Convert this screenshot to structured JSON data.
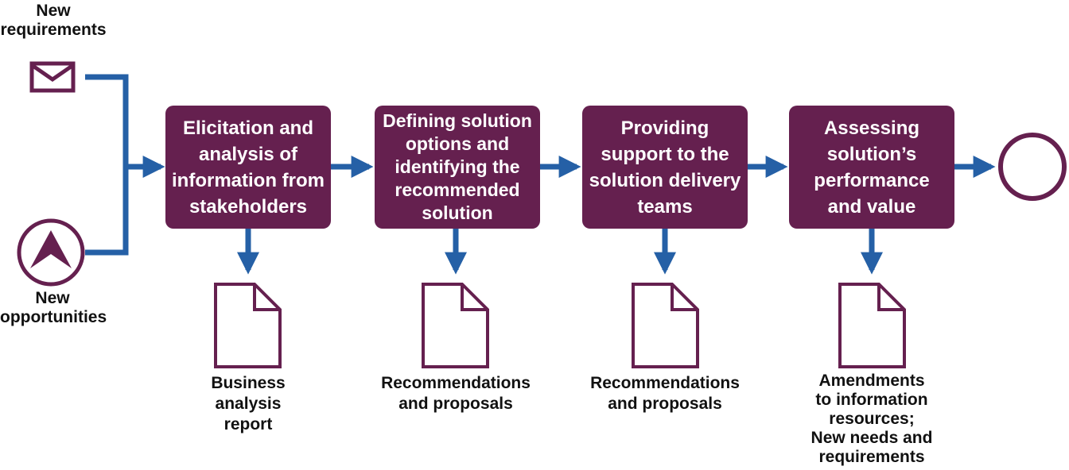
{
  "colors": {
    "process": "#65204F",
    "arrow": "#2560A6",
    "outline": "#65204F",
    "text": "#111111"
  },
  "inputs": [
    {
      "icon": "envelope-icon",
      "lines": [
        "New",
        "requirements"
      ]
    },
    {
      "icon": "opportunity-chevron-icon",
      "lines": [
        "New",
        "opportunities"
      ]
    }
  ],
  "steps": [
    {
      "lines": [
        "Elicitation and",
        "analysis of",
        "information from",
        "stakeholders"
      ],
      "output": [
        "Business",
        "analysis",
        "report"
      ]
    },
    {
      "lines": [
        "Defining solution",
        "options and",
        "identifying the",
        "recommended",
        "solution"
      ],
      "output": [
        "Recommendations",
        "and proposals"
      ]
    },
    {
      "lines": [
        "Providing",
        "support to the",
        "solution delivery",
        "teams"
      ],
      "output": [
        "Recommendations",
        "and proposals"
      ]
    },
    {
      "lines": [
        "Assessing",
        "solution’s",
        "performance",
        "and value"
      ],
      "output": [
        "Amendments",
        "to information",
        "resources;",
        "New needs and",
        "requirements"
      ]
    }
  ],
  "end": {
    "icon": "end-event-circle-icon"
  }
}
